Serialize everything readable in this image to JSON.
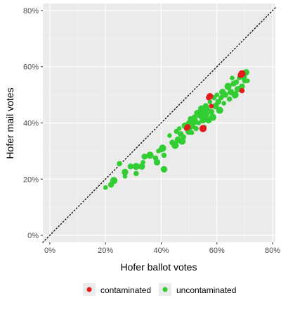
{
  "chart_data": {
    "type": "scatter",
    "title": "",
    "xlabel": "Hofer ballot votes",
    "ylabel": "Hofer mail votes",
    "xlim": [
      -0.025,
      0.81
    ],
    "ylim": [
      -0.025,
      0.825
    ],
    "x_ticks": [
      0,
      0.2,
      0.4,
      0.6,
      0.8
    ],
    "x_tick_labels": [
      "0%",
      "20%",
      "40%",
      "60%",
      "80%"
    ],
    "y_ticks": [
      0,
      0.2,
      0.4,
      0.6,
      0.8
    ],
    "y_tick_labels": [
      "0%",
      "20%",
      "40%",
      "60%",
      "80%"
    ],
    "grid": true,
    "panel_background": "#ebebeb",
    "reference_line": {
      "type": "identity",
      "style": "dotted",
      "color": "#000000"
    },
    "legend": {
      "position": "bottom",
      "entries": [
        {
          "label": "contaminated",
          "color": "#e41a1c"
        },
        {
          "label": "uncontaminated",
          "color": "#32cd32"
        }
      ]
    },
    "series": [
      {
        "name": "uncontaminated",
        "color": "#32cd32",
        "points": [
          [
            0.2,
            0.17
          ],
          [
            0.22,
            0.18
          ],
          [
            0.23,
            0.195
          ],
          [
            0.25,
            0.255
          ],
          [
            0.27,
            0.225
          ],
          [
            0.27,
            0.21
          ],
          [
            0.29,
            0.245
          ],
          [
            0.31,
            0.245
          ],
          [
            0.31,
            0.22
          ],
          [
            0.33,
            0.245
          ],
          [
            0.335,
            0.26
          ],
          [
            0.34,
            0.28
          ],
          [
            0.36,
            0.285
          ],
          [
            0.38,
            0.275
          ],
          [
            0.385,
            0.26
          ],
          [
            0.39,
            0.3
          ],
          [
            0.4,
            0.305
          ],
          [
            0.405,
            0.31
          ],
          [
            0.41,
            0.285
          ],
          [
            0.41,
            0.235
          ],
          [
            0.43,
            0.355
          ],
          [
            0.44,
            0.33
          ],
          [
            0.45,
            0.32
          ],
          [
            0.455,
            0.37
          ],
          [
            0.46,
            0.34
          ],
          [
            0.465,
            0.38
          ],
          [
            0.47,
            0.36
          ],
          [
            0.475,
            0.335
          ],
          [
            0.48,
            0.35
          ],
          [
            0.485,
            0.39
          ],
          [
            0.49,
            0.38
          ],
          [
            0.5,
            0.4
          ],
          [
            0.5,
            0.37
          ],
          [
            0.505,
            0.415
          ],
          [
            0.51,
            0.39
          ],
          [
            0.51,
            0.365
          ],
          [
            0.52,
            0.42
          ],
          [
            0.52,
            0.405
          ],
          [
            0.525,
            0.38
          ],
          [
            0.53,
            0.435
          ],
          [
            0.535,
            0.4
          ],
          [
            0.54,
            0.425
          ],
          [
            0.545,
            0.45
          ],
          [
            0.55,
            0.44
          ],
          [
            0.55,
            0.41
          ],
          [
            0.555,
            0.385
          ],
          [
            0.56,
            0.46
          ],
          [
            0.56,
            0.43
          ],
          [
            0.565,
            0.45
          ],
          [
            0.57,
            0.41
          ],
          [
            0.575,
            0.475
          ],
          [
            0.58,
            0.44
          ],
          [
            0.585,
            0.42
          ],
          [
            0.59,
            0.49
          ],
          [
            0.595,
            0.46
          ],
          [
            0.6,
            0.5
          ],
          [
            0.605,
            0.475
          ],
          [
            0.61,
            0.445
          ],
          [
            0.615,
            0.49
          ],
          [
            0.62,
            0.51
          ],
          [
            0.625,
            0.47
          ],
          [
            0.63,
            0.5
          ],
          [
            0.64,
            0.53
          ],
          [
            0.645,
            0.485
          ],
          [
            0.65,
            0.51
          ],
          [
            0.655,
            0.56
          ],
          [
            0.66,
            0.54
          ],
          [
            0.665,
            0.5
          ],
          [
            0.67,
            0.545
          ],
          [
            0.675,
            0.52
          ],
          [
            0.68,
            0.56
          ],
          [
            0.69,
            0.53
          ],
          [
            0.695,
            0.565
          ],
          [
            0.7,
            0.55
          ],
          [
            0.705,
            0.58
          ],
          [
            0.71,
            0.55
          ]
        ]
      },
      {
        "name": "contaminated",
        "color": "#e41a1c",
        "points": [
          [
            0.49,
            0.38
          ],
          [
            0.495,
            0.385
          ],
          [
            0.55,
            0.38
          ],
          [
            0.57,
            0.49
          ],
          [
            0.575,
            0.495
          ],
          [
            0.58,
            0.46
          ],
          [
            0.685,
            0.57
          ],
          [
            0.69,
            0.575
          ],
          [
            0.69,
            0.515
          ]
        ]
      }
    ]
  }
}
